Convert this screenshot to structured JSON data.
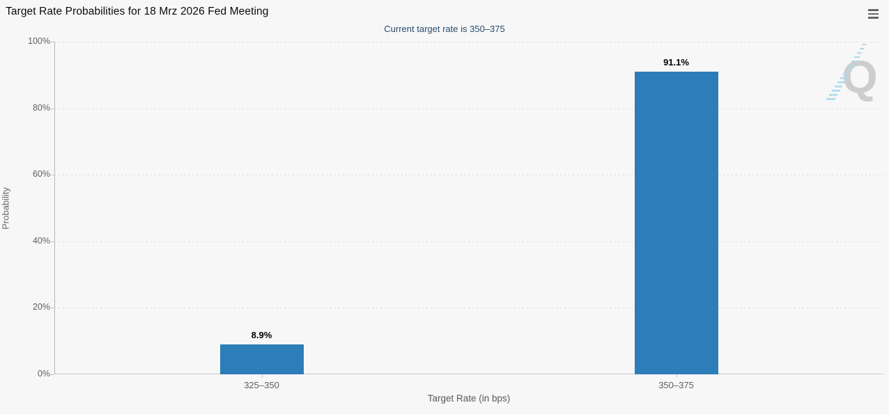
{
  "header": {
    "title": "Target Rate Probabilities for 18 Mrz 2026 Fed Meeting",
    "subtitle": "Current target rate is 350–375"
  },
  "chart_data": {
    "type": "bar",
    "title": "Target Rate Probabilities for 18 Mrz 2026 Fed Meeting",
    "subtitle": "Current target rate is 350–375",
    "categories": [
      "325–350",
      "350–375"
    ],
    "values": [
      8.9,
      91.1
    ],
    "value_labels": [
      "8.9%",
      "91.1%"
    ],
    "xlabel": "Target Rate (in bps)",
    "ylabel": "Probability",
    "ylim": [
      0,
      100
    ],
    "yticks": [
      0,
      20,
      40,
      60,
      80,
      100
    ],
    "ytick_labels": [
      "0%",
      "20%",
      "40%",
      "60%",
      "80%",
      "100%"
    ],
    "grid": "dotted-horizontal",
    "legend": "none",
    "bar_color": "#2d7eb8"
  },
  "colors": {
    "background": "#f7f7f7",
    "bar": "#2d7eb8",
    "subtitle_text": "#274b6d",
    "axis_text": "#606060",
    "gridline": "#d6d6d6",
    "watermark_letter": "#cbcbcb",
    "watermark_dashes": "#a9d9ed"
  },
  "icons": {
    "menu": "hamburger-menu-icon",
    "watermark": "quandl-q-watermark"
  }
}
